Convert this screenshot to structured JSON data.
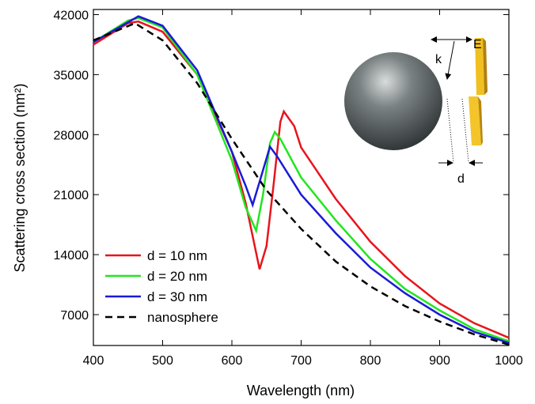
{
  "chart_data": {
    "type": "line",
    "x_label": "Wavelength (nm)",
    "y_label": "Scattering cross section (nm²)",
    "xlim": [
      400,
      1000
    ],
    "xticks": [
      400,
      500,
      600,
      700,
      800,
      900,
      1000
    ],
    "ylim": [
      3400,
      42600
    ],
    "yticks": [
      7000,
      14000,
      21000,
      28000,
      35000,
      42000
    ],
    "legend": "lower left",
    "annotations": [
      "E",
      "k",
      "d"
    ],
    "series": [
      {
        "name": "d = 10 nm",
        "color": "#e8141c",
        "dash": "solid",
        "x": [
          400,
          450,
          465,
          500,
          550,
          600,
          620,
          640,
          650,
          660,
          670,
          675,
          690,
          700,
          750,
          800,
          850,
          900,
          950,
          1000
        ],
        "values": [
          38500,
          41000,
          41200,
          40000,
          35000,
          26000,
          20000,
          12300,
          15000,
          22000,
          29500,
          30700,
          29000,
          26500,
          20500,
          15500,
          11500,
          8300,
          6000,
          4300
        ]
      },
      {
        "name": "d = 20 nm",
        "color": "#22e61e",
        "dash": "solid",
        "x": [
          400,
          450,
          465,
          500,
          550,
          600,
          620,
          635,
          645,
          655,
          662,
          670,
          700,
          750,
          800,
          850,
          900,
          950,
          1000
        ],
        "values": [
          38800,
          41300,
          41600,
          40500,
          35000,
          25000,
          19500,
          16800,
          21000,
          27000,
          28300,
          27500,
          23000,
          18000,
          13500,
          10000,
          7500,
          5300,
          3900
        ]
      },
      {
        "name": "d = 30 nm",
        "color": "#1a1ad6",
        "dash": "solid",
        "x": [
          400,
          465,
          500,
          550,
          600,
          620,
          630,
          640,
          655,
          665,
          700,
          750,
          800,
          850,
          900,
          950,
          1000
        ],
        "values": [
          38800,
          41800,
          40700,
          35500,
          26000,
          22000,
          19800,
          22500,
          26600,
          25500,
          21000,
          16500,
          12500,
          9500,
          7000,
          5000,
          3700
        ]
      },
      {
        "name": "nanosphere",
        "color": "#000000",
        "dash": "dashed",
        "x": [
          400,
          460,
          500,
          550,
          600,
          650,
          700,
          750,
          800,
          850,
          900,
          950,
          1000
        ],
        "values": [
          39000,
          41000,
          39000,
          34000,
          27500,
          21500,
          17000,
          13200,
          10300,
          8000,
          6200,
          4700,
          3500
        ]
      }
    ]
  }
}
